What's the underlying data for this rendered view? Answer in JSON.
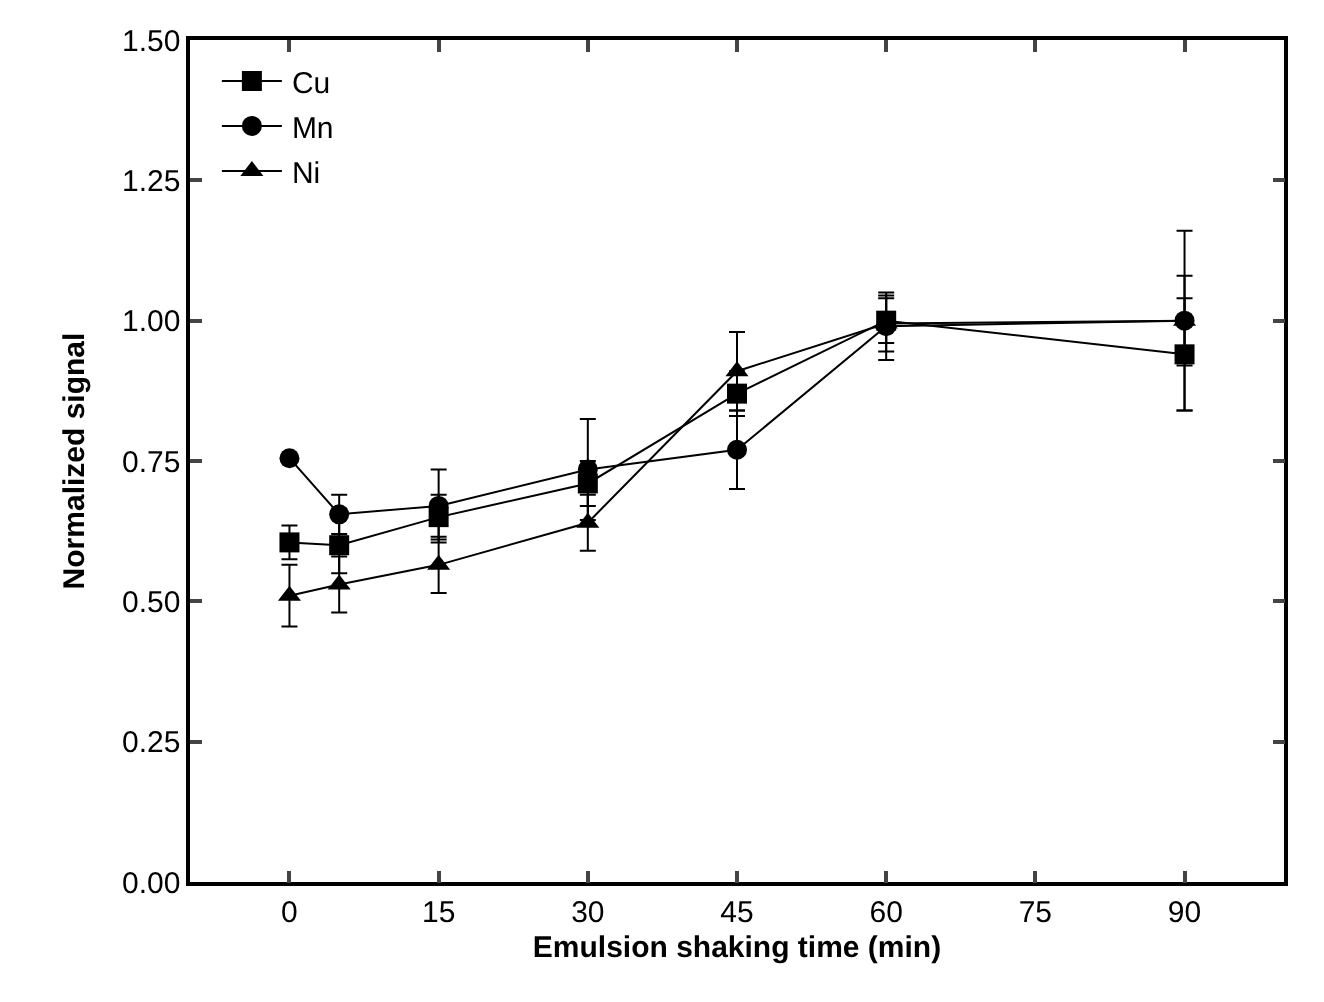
{
  "chart_data": {
    "type": "line",
    "xlabel": "Emulsion shaking time (min)",
    "ylabel": "Normalized signal",
    "x": [
      0,
      5,
      15,
      30,
      45,
      60,
      90
    ],
    "series": [
      {
        "name": "Cu",
        "color": "#000000",
        "marker": "square",
        "values": [
          0.605,
          0.6,
          0.65,
          0.71,
          0.87,
          1.0,
          0.94
        ],
        "errors": [
          0.03,
          0.05,
          0.04,
          0.04,
          0.04,
          0.04,
          0.1
        ]
      },
      {
        "name": "Mn",
        "color": "#000000",
        "marker": "circle",
        "values": [
          0.755,
          0.655,
          0.67,
          0.735,
          0.77,
          0.99,
          1.0
        ],
        "errors": [
          null,
          0.035,
          0.065,
          0.09,
          0.07,
          0.06,
          0.16
        ]
      },
      {
        "name": "Ni",
        "color": "#000000",
        "marker": "triangle",
        "values": [
          0.51,
          0.53,
          0.565,
          0.64,
          0.91,
          0.995,
          1.0
        ],
        "errors": [
          0.055,
          0.05,
          0.05,
          0.05,
          0.07,
          0.05,
          0.08
        ]
      }
    ],
    "xlim": [
      -10,
      100
    ],
    "xticks": [
      0,
      15,
      30,
      45,
      60,
      75,
      90
    ],
    "ylim": [
      0,
      1.5
    ],
    "yticks": [
      {
        "value": 0,
        "label": "0.00"
      },
      {
        "value": 0.25,
        "label": "0.25"
      },
      {
        "value": 0.5,
        "label": "0.50"
      },
      {
        "value": 0.75,
        "label": "0.75"
      },
      {
        "value": 1,
        "label": "1.00"
      },
      {
        "value": 1.25,
        "label": "1.25"
      },
      {
        "value": 1.5,
        "label": "1.50"
      }
    ],
    "legend": "top left",
    "line_style": "solid"
  }
}
